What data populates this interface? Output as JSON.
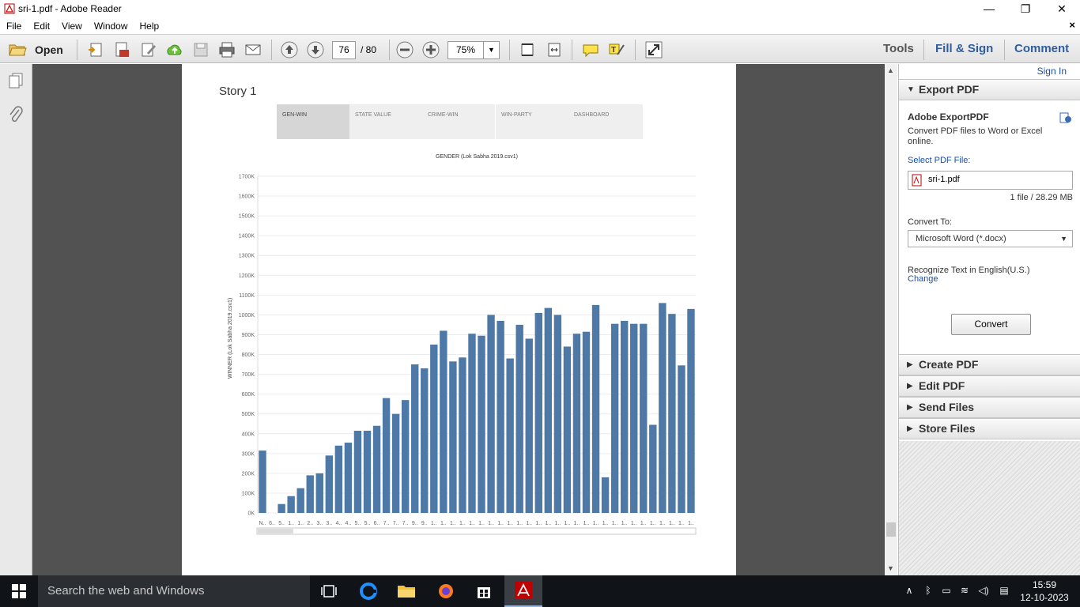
{
  "window": {
    "title": "sri-1.pdf - Adobe Reader",
    "minimize": "—",
    "maximize": "❐",
    "close": "✕"
  },
  "menubar": {
    "items": [
      "File",
      "Edit",
      "View",
      "Window",
      "Help"
    ],
    "close_doc": "×"
  },
  "toolbar": {
    "open_label": "Open",
    "page_current": "76",
    "page_total": "/ 80",
    "zoom": "75%",
    "tools": "Tools",
    "fill_sign": "Fill & Sign",
    "comment": "Comment"
  },
  "document": {
    "story_title": "Story 1",
    "tabs": [
      "GEN-WIN",
      "STATE VALUE",
      "CRIME-WIN",
      "WIN-PARTY",
      "DASHBOARD"
    ],
    "active_tab": 0
  },
  "chart_data": {
    "type": "bar",
    "title": "GENDER (Lok Sabha 2019.csv1)",
    "ylabel": "WINNER (Lok Sabha 2019.csv1)",
    "xlabel": "",
    "ylim": [
      0,
      1700
    ],
    "yticks": [
      "0K",
      "100K",
      "200K",
      "300K",
      "400K",
      "500K",
      "600K",
      "700K",
      "800K",
      "900K",
      "1000K",
      "1100K",
      "1200K",
      "1300K",
      "1400K",
      "1500K",
      "1600K",
      "1700K"
    ],
    "categories": [
      "N..",
      "6..",
      "5..",
      "1..",
      "1..",
      "2..",
      "3..",
      "3..",
      "4..",
      "4..",
      "5..",
      "5..",
      "6..",
      "7..",
      "7..",
      "7..",
      "9..",
      "9..",
      "1..",
      "1..",
      "1..",
      "1..",
      "1..",
      "1..",
      "1..",
      "1..",
      "1..",
      "1..",
      "1..",
      "1..",
      "1..",
      "1..",
      "1..",
      "1..",
      "1..",
      "1..",
      "1..",
      "1..",
      "1..",
      "1..",
      "1..",
      "1..",
      "1..",
      "1..",
      "1..",
      "1.."
    ],
    "values": [
      315,
      0,
      45,
      85,
      125,
      190,
      200,
      290,
      340,
      355,
      415,
      415,
      440,
      580,
      500,
      570,
      750,
      730,
      850,
      920,
      765,
      785,
      905,
      895,
      1000,
      970,
      780,
      950,
      880,
      1010,
      1035,
      1000,
      840,
      905,
      915,
      1050,
      180,
      955,
      970,
      955,
      955,
      445,
      1060,
      1005,
      745,
      1030
    ],
    "color": "#4e79a7",
    "grid": true
  },
  "rightpane": {
    "sign_in": "Sign In",
    "export_pdf": "Export PDF",
    "adobe_exportpdf": "Adobe ExportPDF",
    "description": "Convert PDF files to Word or Excel online.",
    "select_label": "Select PDF File:",
    "file_name": "sri-1.pdf",
    "file_size": "1 file / 28.29 MB",
    "convert_to_label": "Convert To:",
    "convert_to_value": "Microsoft Word (*.docx)",
    "recognize": "Recognize Text in English(U.S.)",
    "change": "Change",
    "convert_button": "Convert",
    "panels": [
      "Create PDF",
      "Edit PDF",
      "Send Files",
      "Store Files"
    ]
  },
  "taskbar": {
    "search_placeholder": "Search the web and Windows",
    "time": "15:59",
    "date": "12-10-2023"
  },
  "colors": {
    "bar": "#4e79a7",
    "link": "#1a4fa0",
    "taskbar": "#101418"
  }
}
